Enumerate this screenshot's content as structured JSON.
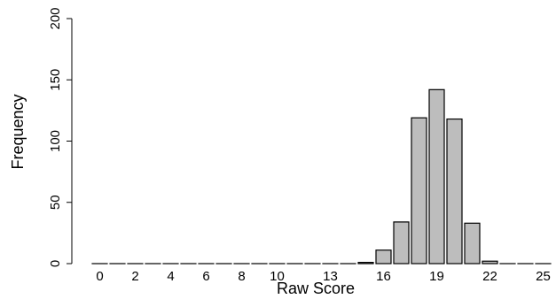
{
  "chart_data": {
    "type": "bar",
    "xlabel": "Raw Score",
    "ylabel": "Frequency",
    "ylim": [
      0,
      200
    ],
    "yticks": [
      0,
      50,
      100,
      150,
      200
    ],
    "xtick_labels": [
      "0",
      "2",
      "4",
      "6",
      "8",
      "10",
      "13",
      "16",
      "19",
      "22",
      "25"
    ],
    "xtick_values": [
      0,
      2,
      4,
      6,
      8,
      10,
      13,
      16,
      19,
      22,
      25
    ],
    "categories": [
      0,
      1,
      2,
      3,
      4,
      5,
      6,
      7,
      8,
      9,
      10,
      11,
      12,
      13,
      14,
      15,
      16,
      17,
      18,
      19,
      20,
      21,
      22,
      23,
      24,
      25
    ],
    "values": [
      0,
      0,
      0,
      0,
      0,
      0,
      0,
      0,
      0,
      0,
      0,
      0,
      0,
      0,
      0,
      1,
      11,
      34,
      119,
      142,
      118,
      33,
      2,
      0,
      0,
      0
    ],
    "bar_fill": "#bdbdbd",
    "bar_stroke": "#000000",
    "grid": false,
    "legend": "none"
  }
}
